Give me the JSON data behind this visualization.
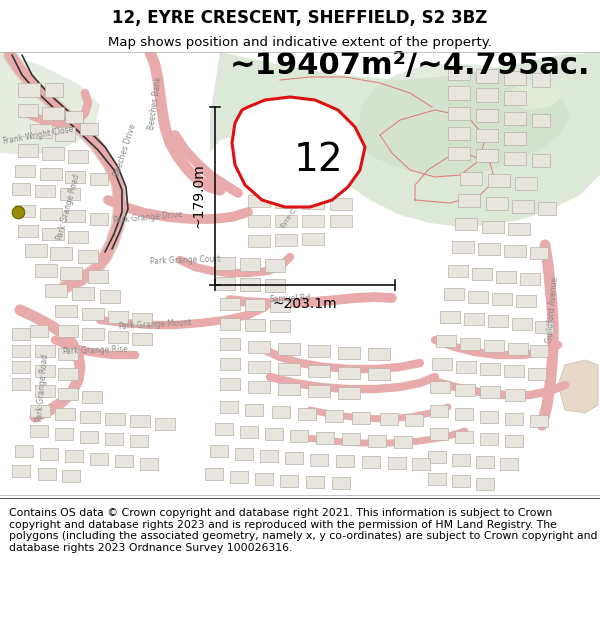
{
  "title": "12, EYRE CRESCENT, SHEFFIELD, S2 3BZ",
  "subtitle": "Map shows position and indicative extent of the property.",
  "area_text": "~19407m²/~4.795ac.",
  "number_label": "12",
  "dim_horizontal": "~203.1m",
  "dim_vertical": "~179.0m",
  "footer": "Contains OS data © Crown copyright and database right 2021. This information is subject to Crown copyright and database rights 2023 and is reproduced with the permission of HM Land Registry. The polygons (including the associated geometry, namely x, y co-ordinates) are subject to Crown copyright and database rights 2023 Ordnance Survey 100026316.",
  "map_bg": "#f5f3ef",
  "green_area1": "#dce8d8",
  "green_area2": "#e4ede0",
  "road_pink": "#e8aaaa",
  "road_outline": "#d08080",
  "road_red_thin": "#e8a0a0",
  "road_black": "#555555",
  "building_fill": "#e8e4de",
  "building_stroke": "#b8b0a8",
  "property_stroke": "#dd1111",
  "property_fill": "none",
  "dim_line_color": "#111111",
  "yellow_dot": "#9a8a00",
  "title_fontsize": 12,
  "subtitle_fontsize": 9.5,
  "area_fontsize": 22,
  "number_fontsize": 28,
  "dim_fontsize": 10,
  "footer_fontsize": 7.8,
  "label_fontsize": 5.5
}
